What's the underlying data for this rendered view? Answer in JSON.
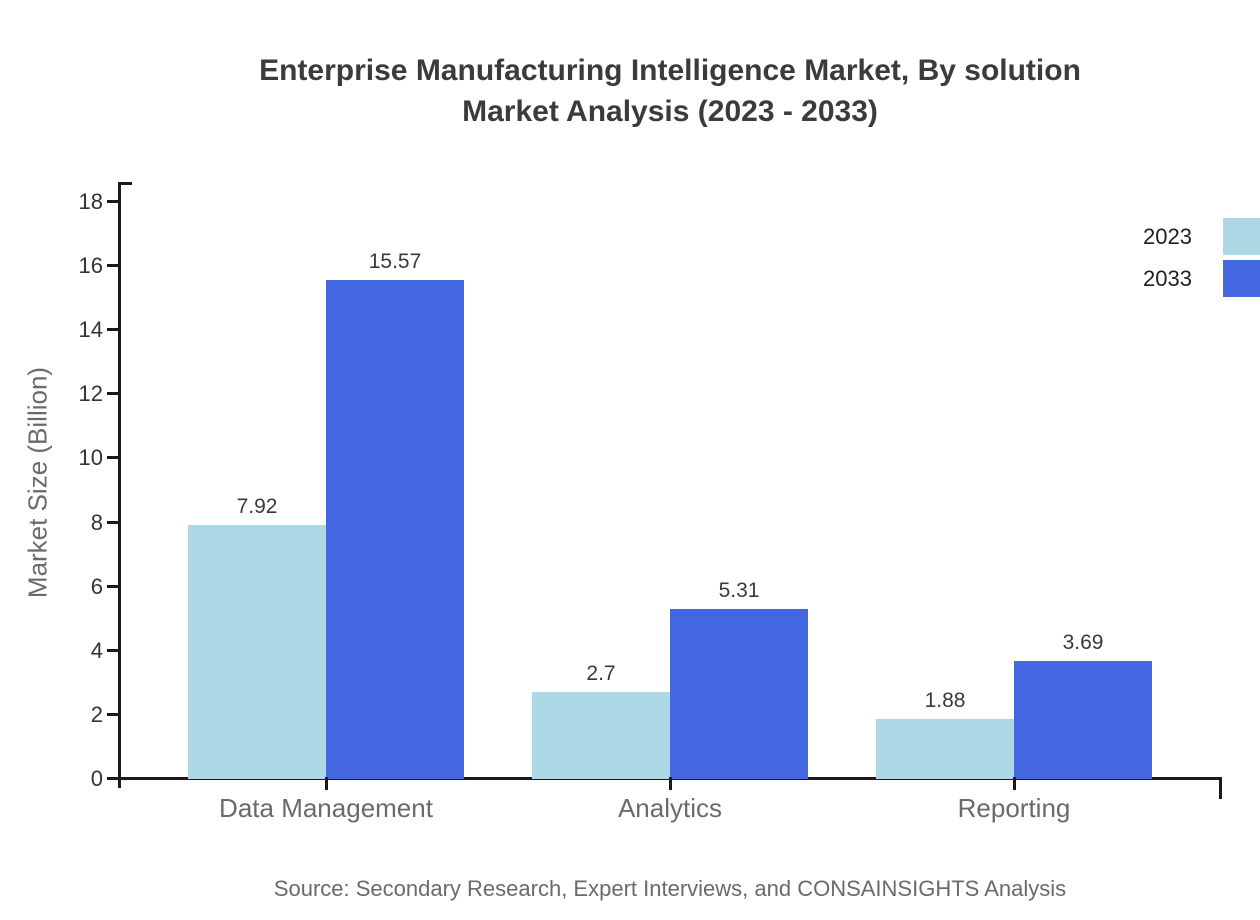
{
  "page": {
    "title_lines": [
      "Enterprise Manufacturing Intelligence Market, By solution",
      "Market Analysis (2023 - 2033)"
    ]
  },
  "chart_data": {
    "type": "bar",
    "title": "Enterprise Manufacturing Intelligence Market, By solution Market Analysis (2023 - 2033)",
    "categories": [
      "Data Management",
      "Analytics",
      "Reporting"
    ],
    "series": [
      {
        "name": "2023",
        "color": "#add8e6",
        "values": [
          7.92,
          2.7,
          1.88
        ]
      },
      {
        "name": "2033",
        "color": "#4267e1",
        "values": [
          15.57,
          5.31,
          3.69
        ]
      }
    ],
    "xlabel": "",
    "ylabel": "Market Size (Billion)",
    "ylim": [
      0,
      18
    ],
    "yticks": [
      0,
      2,
      4,
      6,
      8,
      10,
      12,
      14,
      16,
      18
    ],
    "grid": false,
    "legend_position": "top-right",
    "bar_value_labels_shown": true,
    "source": "Source: Secondary Research, Expert Interviews, and CONSAINSIGHTS Analysis",
    "axis_color": "#1a1a1a",
    "text_color": "#6a6a6a"
  }
}
